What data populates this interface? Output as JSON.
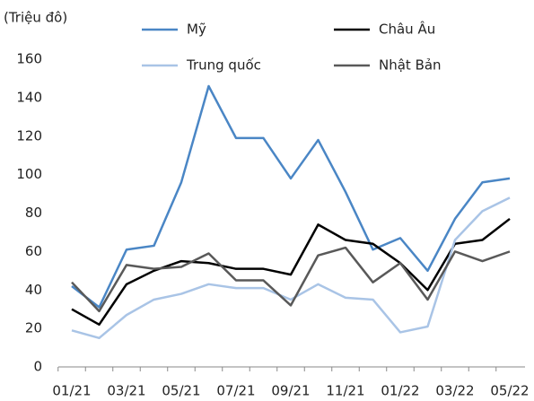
{
  "chart_data": {
    "type": "line",
    "y_axis_label": "(Triệu đô)",
    "categories": [
      "01/21",
      null,
      "03/21",
      null,
      "05/21",
      null,
      "07/21",
      null,
      "09/21",
      null,
      "11/21",
      null,
      "01/22",
      null,
      "03/22",
      null,
      "05/22"
    ],
    "series": [
      {
        "name": "Mỹ",
        "color": "#4a86c5",
        "values": [
          42,
          31,
          61,
          63,
          96,
          146,
          119,
          119,
          98,
          118,
          91,
          61,
          67,
          50,
          77,
          96,
          98
        ]
      },
      {
        "name": "Châu Âu",
        "color": "#000000",
        "values": [
          30,
          22,
          43,
          50,
          55,
          54,
          51,
          51,
          48,
          74,
          66,
          64,
          54,
          40,
          64,
          66,
          77
        ]
      },
      {
        "name": "Trung quốc",
        "color": "#a9c4e6",
        "values": [
          19,
          15,
          27,
          35,
          38,
          43,
          41,
          41,
          35,
          43,
          36,
          35,
          18,
          21,
          66,
          81,
          88
        ]
      },
      {
        "name": "Nhật Bản",
        "color": "#595959",
        "values": [
          44,
          29,
          53,
          51,
          52,
          59,
          45,
          45,
          32,
          58,
          62,
          44,
          54,
          35,
          60,
          55,
          60
        ]
      }
    ],
    "ylim": [
      0,
      160
    ],
    "yticks": [
      0,
      20,
      40,
      60,
      80,
      100,
      120,
      140,
      160
    ],
    "grid": false
  }
}
